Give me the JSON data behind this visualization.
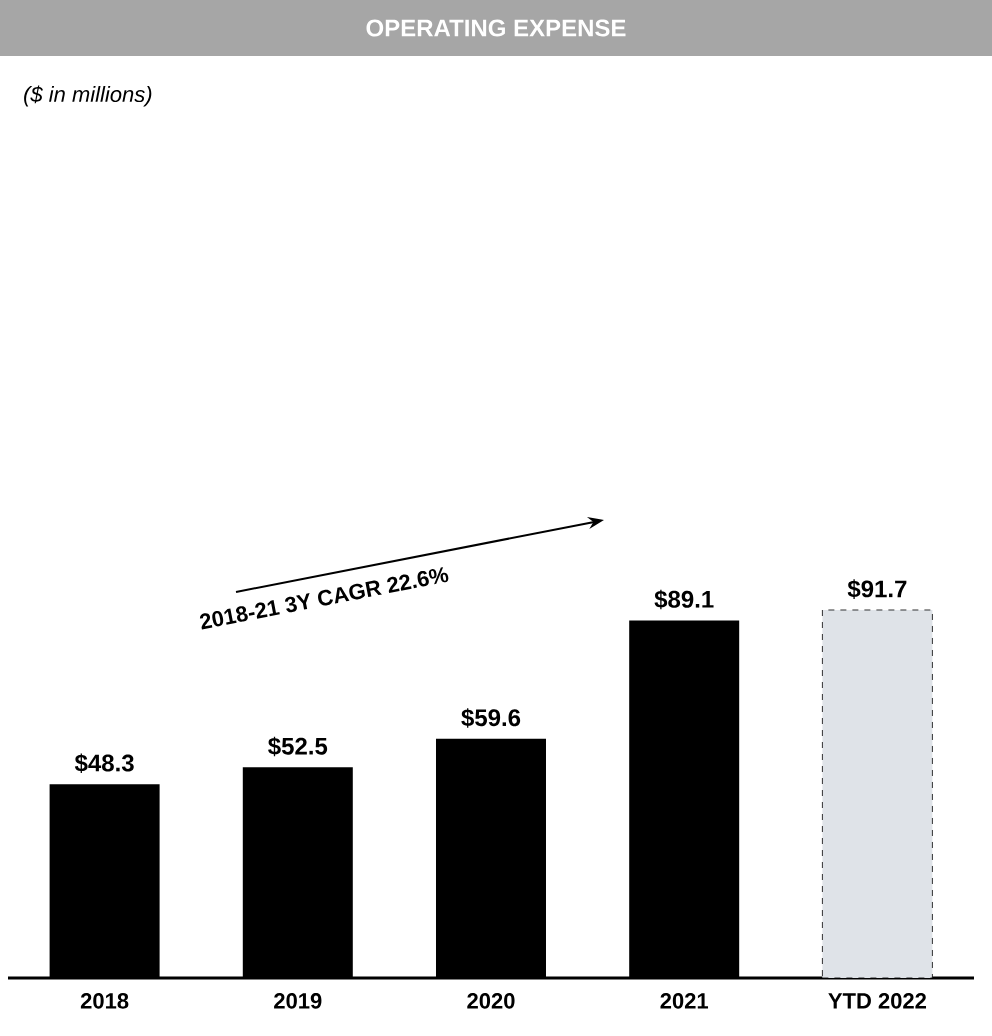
{
  "chart_data": {
    "type": "bar",
    "title": "OPERATING EXPENSE",
    "subtitle": "($ in millions)",
    "categories": [
      "2018",
      "2019",
      "2020",
      "2021",
      "YTD 2022"
    ],
    "values": [
      48.3,
      52.5,
      59.6,
      89.1,
      91.7
    ],
    "colors": [
      "#000000",
      "#000000",
      "#000000",
      "#000000",
      "#dfe3e8"
    ],
    "value_labels": [
      "$48.3",
      "$52.5",
      "$59.6",
      "$89.1",
      "$91.7"
    ],
    "annotations": [
      "2018-21 3Y CAGR 22.6%"
    ]
  }
}
